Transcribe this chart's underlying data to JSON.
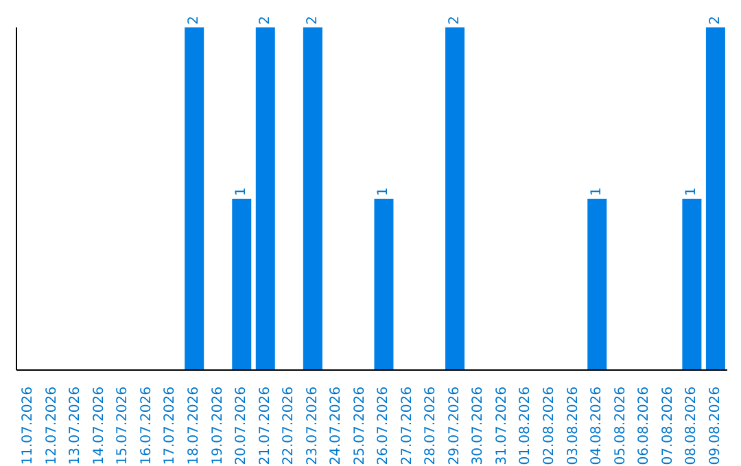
{
  "chart_data": {
    "type": "bar",
    "categories": [
      "11.07.2026",
      "12.07.2026",
      "13.07.2026",
      "14.07.2026",
      "15.07.2026",
      "16.07.2026",
      "17.07.2026",
      "18.07.2026",
      "19.07.2026",
      "20.07.2026",
      "21.07.2026",
      "22.07.2026",
      "23.07.2026",
      "24.07.2026",
      "25.07.2026",
      "26.07.2026",
      "27.07.2026",
      "28.07.2026",
      "29.07.2026",
      "30.07.2026",
      "31.07.2026",
      "01.08.2026",
      "02.08.2026",
      "03.08.2026",
      "04.08.2026",
      "05.08.2026",
      "06.08.2026",
      "07.08.2026",
      "08.08.2026",
      "09.08.2026"
    ],
    "values": [
      0,
      0,
      0,
      0,
      0,
      0,
      0,
      2,
      0,
      1,
      2,
      0,
      2,
      0,
      0,
      1,
      0,
      0,
      2,
      0,
      0,
      0,
      0,
      0,
      1,
      0,
      0,
      0,
      1,
      2
    ],
    "value_labels": [
      null,
      null,
      null,
      null,
      null,
      null,
      null,
      "2",
      null,
      "1",
      "2",
      null,
      "2",
      null,
      null,
      "1",
      null,
      null,
      "2",
      null,
      null,
      null,
      null,
      null,
      "1",
      null,
      null,
      null,
      "1",
      "2"
    ],
    "color": "#0080e6",
    "tick_labels": "x"
  }
}
